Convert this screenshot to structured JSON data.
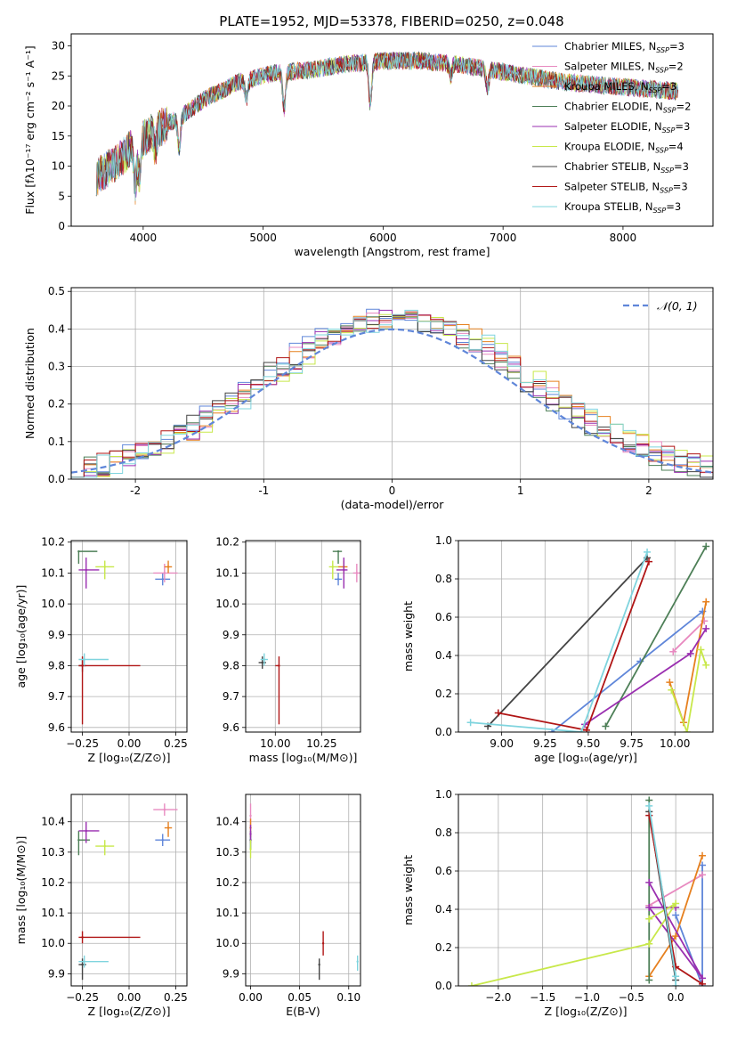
{
  "figure_title": "PLATE=1952, MJD=53378, FIBERID=0250, z=0.048",
  "colors": {
    "Chabrier MILES": "#5f86d9",
    "Salpeter MILES": "#e88ac0",
    "Kroupa MILES": "#e6801f",
    "Chabrier ELODIE": "#4d7f57",
    "Salpeter ELODIE": "#9a2fb0",
    "Kroupa ELODIE": "#c8e84a",
    "Chabrier STELIB": "#444444",
    "Salpeter STELIB": "#b01515",
    "Kroupa STELIB": "#7fd4de",
    "normal": "#5f86d9",
    "grid": "#b0b0b0"
  },
  "chart_data": [
    {
      "id": "spectrum",
      "type": "line",
      "xlabel": "wavelength [Angstrom, rest frame]",
      "ylabel": "Flux [fλ10⁻¹⁷ erg cm⁻² s⁻¹ A⁻¹]",
      "xlim": [
        3400,
        8750
      ],
      "ylim": [
        0,
        32
      ],
      "xticks": [
        4000,
        5000,
        6000,
        7000,
        8000
      ],
      "yticks": [
        0,
        5,
        10,
        15,
        20,
        25,
        30
      ],
      "grid": false,
      "legend_position": "top-right",
      "continuum": {
        "x": [
          3600,
          3800,
          3950,
          4100,
          4300,
          4500,
          4800,
          5100,
          5400,
          5700,
          6000,
          6300,
          6600,
          6900,
          7200,
          7500,
          7800,
          8100,
          8400,
          8700
        ],
        "y": [
          8,
          11,
          14,
          16,
          18,
          21,
          24,
          25.5,
          26,
          27,
          27.5,
          27.5,
          27,
          26,
          25,
          24,
          23.5,
          23,
          22.5,
          22
        ]
      },
      "features": [
        {
          "x": 3933,
          "depth": 7
        },
        {
          "x": 3968,
          "depth": 6
        },
        {
          "x": 4102,
          "depth": 3
        },
        {
          "x": 4300,
          "depth": 5
        },
        {
          "x": 4861,
          "depth": 3
        },
        {
          "x": 5175,
          "depth": 6
        },
        {
          "x": 5893,
          "depth": 7
        },
        {
          "x": 6563,
          "depth": 2
        },
        {
          "x": 6870,
          "depth": 3
        }
      ],
      "series": [
        {
          "name": "Chabrier MILES, N",
          "sub": "SSP",
          "suffix": "=3"
        },
        {
          "name": "Salpeter MILES, N",
          "sub": "SSP",
          "suffix": "=2"
        },
        {
          "name": "Kroupa MILES, N",
          "sub": "SSP",
          "suffix": "=3"
        },
        {
          "name": "Chabrier ELODIE, N",
          "sub": "SSP",
          "suffix": "=2"
        },
        {
          "name": "Salpeter ELODIE, N",
          "sub": "SSP",
          "suffix": "=3"
        },
        {
          "name": "Kroupa ELODIE, N",
          "sub": "SSP",
          "suffix": "=4"
        },
        {
          "name": "Chabrier STELIB, N",
          "sub": "SSP",
          "suffix": "=3"
        },
        {
          "name": "Salpeter STELIB, N",
          "sub": "SSP",
          "suffix": "=3"
        },
        {
          "name": "Kroupa STELIB, N",
          "sub": "SSP",
          "suffix": "=3"
        }
      ]
    },
    {
      "id": "residuals",
      "type": "line",
      "xlabel": "(data-model)/error",
      "ylabel": "Normed distribution",
      "xlim": [
        -2.5,
        2.5
      ],
      "ylim": [
        0,
        0.51
      ],
      "xticks": [
        -2,
        -1,
        0,
        1,
        2
      ],
      "yticks": [
        0.0,
        0.1,
        0.2,
        0.3,
        0.4,
        0.5
      ],
      "grid": true,
      "legend_position": "top-right",
      "legend": "𝒩(0, 1)",
      "normal_curve": {
        "mean": 0,
        "sigma": 1
      },
      "histogram_bins": {
        "start": -2.5,
        "width": 0.1
      }
    },
    {
      "id": "age_vs_Z",
      "type": "scatter",
      "xlabel": "Z [log₁₀(Z/Z⊙)]",
      "ylabel": "age  [log₁₀(age/yr)]",
      "xlim": [
        -0.31,
        0.31
      ],
      "ylim": [
        9.585,
        10.205
      ],
      "xticks": [
        -0.25,
        0.0,
        0.25
      ],
      "xticklabels": [
        "−0.25",
        "0.00",
        "0.25"
      ],
      "yticks": [
        9.6,
        9.7,
        9.8,
        9.9,
        10.0,
        10.1,
        10.2
      ],
      "grid": true,
      "points": [
        {
          "series": "Chabrier MILES",
          "x": 0.18,
          "y": 10.08,
          "xerr": [
            0.04,
            0.04
          ],
          "yerr": [
            0.02,
            0.02
          ]
        },
        {
          "series": "Salpeter MILES",
          "x": 0.19,
          "y": 10.1,
          "xerr": [
            0.06,
            0.07
          ],
          "yerr": [
            0.03,
            0.03
          ]
        },
        {
          "series": "Kroupa MILES",
          "x": 0.21,
          "y": 10.12,
          "xerr": [
            0.02,
            0.02
          ],
          "yerr": [
            0.02,
            0.02
          ]
        },
        {
          "series": "Chabrier ELODIE",
          "x": -0.27,
          "y": 10.17,
          "xerr": [
            0.0,
            0.1
          ],
          "yerr": [
            0.04,
            0.0
          ]
        },
        {
          "series": "Salpeter ELODIE",
          "x": -0.23,
          "y": 10.11,
          "xerr": [
            0.04,
            0.07
          ],
          "yerr": [
            0.06,
            0.04
          ]
        },
        {
          "series": "Kroupa ELODIE",
          "x": -0.13,
          "y": 10.12,
          "xerr": [
            0.05,
            0.05
          ],
          "yerr": [
            0.04,
            0.02
          ]
        },
        {
          "series": "Chabrier STELIB",
          "x": -0.25,
          "y": 9.8,
          "xerr": [
            0.02,
            0.02
          ],
          "yerr": [
            0.02,
            0.02
          ]
        },
        {
          "series": "Salpeter STELIB",
          "x": -0.25,
          "y": 9.8,
          "xerr": [
            0.02,
            0.31
          ],
          "yerr": [
            0.19,
            0.03
          ]
        },
        {
          "series": "Kroupa STELIB",
          "x": -0.24,
          "y": 9.82,
          "xerr": [
            0.03,
            0.13
          ],
          "yerr": [
            0.02,
            0.02
          ]
        }
      ]
    },
    {
      "id": "age_vs_mass",
      "type": "scatter",
      "xlabel": "mass [log₁₀(M/M⊙)]",
      "ylabel": "",
      "xlim": [
        9.84,
        10.46
      ],
      "ylim": [
        9.585,
        10.205
      ],
      "xticks": [
        10.0,
        10.25
      ],
      "xticklabels": [
        "10.00",
        "10.25"
      ],
      "yticks": [
        9.6,
        9.7,
        9.8,
        9.9,
        10.0,
        10.1,
        10.2
      ],
      "grid": true,
      "points": [
        {
          "series": "Chabrier MILES",
          "x": 10.34,
          "y": 10.08,
          "xerr": [
            0.02,
            0.02
          ],
          "yerr": [
            0.02,
            0.02
          ]
        },
        {
          "series": "Salpeter MILES",
          "x": 10.44,
          "y": 10.1,
          "xerr": [
            0.02,
            0.02
          ],
          "yerr": [
            0.03,
            0.03
          ]
        },
        {
          "series": "Kroupa MILES",
          "x": 10.37,
          "y": 10.12,
          "xerr": [
            0.03,
            0.02
          ],
          "yerr": [
            0.02,
            0.02
          ]
        },
        {
          "series": "Chabrier ELODIE",
          "x": 10.34,
          "y": 10.17,
          "xerr": [
            0.03,
            0.02
          ],
          "yerr": [
            0.04,
            0.0
          ]
        },
        {
          "series": "Salpeter ELODIE",
          "x": 10.37,
          "y": 10.11,
          "xerr": [
            0.04,
            0.02
          ],
          "yerr": [
            0.06,
            0.04
          ]
        },
        {
          "series": "Kroupa ELODIE",
          "x": 10.31,
          "y": 10.12,
          "xerr": [
            0.02,
            0.03
          ],
          "yerr": [
            0.04,
            0.02
          ]
        },
        {
          "series": "Chabrier STELIB",
          "x": 9.93,
          "y": 9.81,
          "xerr": [
            0.02,
            0.02
          ],
          "yerr": [
            0.02,
            0.02
          ]
        },
        {
          "series": "Salpeter STELIB",
          "x": 10.02,
          "y": 9.8,
          "xerr": [
            0.02,
            0.0
          ],
          "yerr": [
            0.19,
            0.03
          ]
        },
        {
          "series": "Kroupa STELIB",
          "x": 9.94,
          "y": 9.82,
          "xerr": [
            0.02,
            0.02
          ],
          "yerr": [
            0.02,
            0.02
          ]
        }
      ]
    },
    {
      "id": "weight_vs_age",
      "type": "line",
      "xlabel": "age  [log₁₀(age/yr)]",
      "ylabel": "mass weight",
      "xlim": [
        8.75,
        10.22
      ],
      "ylim": [
        0,
        1.0
      ],
      "xticks": [
        9.0,
        9.25,
        9.5,
        9.75,
        10.0
      ],
      "xticklabels": [
        "9.00",
        "9.25",
        "9.50",
        "9.75",
        "10.00"
      ],
      "yticks": [
        0.0,
        0.2,
        0.4,
        0.6,
        0.8,
        1.0
      ],
      "grid": true,
      "series": [
        {
          "series": "Chabrier MILES",
          "x": [
            9.29,
            9.8,
            10.16
          ],
          "y": [
            0.0,
            0.37,
            0.63
          ]
        },
        {
          "series": "Salpeter MILES",
          "x": [
            9.99,
            10.17
          ],
          "y": [
            0.42,
            0.58
          ]
        },
        {
          "series": "Kroupa MILES",
          "x": [
            9.97,
            10.05,
            10.18
          ],
          "y": [
            0.26,
            0.05,
            0.68
          ]
        },
        {
          "series": "Chabrier ELODIE",
          "x": [
            9.6,
            10.18
          ],
          "y": [
            0.03,
            0.97
          ]
        },
        {
          "series": "Salpeter ELODIE",
          "x": [
            9.48,
            10.09,
            10.18
          ],
          "y": [
            0.04,
            0.41,
            0.54
          ]
        },
        {
          "series": "Kroupa ELODIE",
          "x": [
            9.98,
            10.07,
            10.15,
            10.18
          ],
          "y": [
            0.22,
            0.0,
            0.43,
            0.35
          ]
        },
        {
          "series": "Chabrier STELIB",
          "x": [
            8.92,
            9.84
          ],
          "y": [
            0.03,
            0.91
          ]
        },
        {
          "series": "Salpeter STELIB",
          "x": [
            8.98,
            9.49,
            9.85
          ],
          "y": [
            0.1,
            0.01,
            0.89
          ]
        },
        {
          "series": "Kroupa STELIB",
          "x": [
            8.82,
            9.46,
            9.84
          ],
          "y": [
            0.05,
            0.0,
            0.94
          ]
        }
      ]
    },
    {
      "id": "mass_vs_Z",
      "type": "scatter",
      "xlabel": "Z [log₁₀(Z/Z⊙)]",
      "ylabel": "mass [log₁₀(M/M⊙)]",
      "xlim": [
        -0.31,
        0.31
      ],
      "ylim": [
        9.86,
        10.49
      ],
      "xticks": [
        -0.25,
        0.0,
        0.25
      ],
      "xticklabels": [
        "−0.25",
        "0.00",
        "0.25"
      ],
      "yticks": [
        9.9,
        10.0,
        10.1,
        10.2,
        10.3,
        10.4
      ],
      "grid": true,
      "points": [
        {
          "series": "Chabrier MILES",
          "x": 0.18,
          "y": 10.34,
          "xerr": [
            0.04,
            0.04
          ],
          "yerr": [
            0.02,
            0.02
          ]
        },
        {
          "series": "Salpeter MILES",
          "x": 0.19,
          "y": 10.44,
          "xerr": [
            0.06,
            0.07
          ],
          "yerr": [
            0.02,
            0.02
          ]
        },
        {
          "series": "Kroupa MILES",
          "x": 0.21,
          "y": 10.38,
          "xerr": [
            0.02,
            0.02
          ],
          "yerr": [
            0.03,
            0.02
          ]
        },
        {
          "series": "Chabrier ELODIE",
          "x": -0.27,
          "y": 10.34,
          "xerr": [
            0.0,
            0.06
          ],
          "yerr": [
            0.05,
            0.03
          ]
        },
        {
          "series": "Salpeter ELODIE",
          "x": -0.23,
          "y": 10.37,
          "xerr": [
            0.04,
            0.07
          ],
          "yerr": [
            0.04,
            0.03
          ]
        },
        {
          "series": "Kroupa ELODIE",
          "x": -0.13,
          "y": 10.32,
          "xerr": [
            0.05,
            0.05
          ],
          "yerr": [
            0.03,
            0.02
          ]
        },
        {
          "series": "Chabrier STELIB",
          "x": -0.25,
          "y": 9.93,
          "xerr": [
            0.02,
            0.02
          ],
          "yerr": [
            0.05,
            0.02
          ]
        },
        {
          "series": "Salpeter STELIB",
          "x": -0.25,
          "y": 10.02,
          "xerr": [
            0.02,
            0.31
          ],
          "yerr": [
            0.02,
            0.02
          ]
        },
        {
          "series": "Kroupa STELIB",
          "x": -0.24,
          "y": 9.94,
          "xerr": [
            0.03,
            0.13
          ],
          "yerr": [
            0.02,
            0.02
          ]
        }
      ]
    },
    {
      "id": "mass_vs_EBV",
      "type": "scatter",
      "xlabel": "E(B-V)",
      "ylabel": "",
      "xlim": [
        -0.005,
        0.112
      ],
      "ylim": [
        9.86,
        10.49
      ],
      "xticks": [
        0.0,
        0.05,
        0.1
      ],
      "xticklabels": [
        "0.00",
        "0.05",
        "0.10"
      ],
      "yticks": [
        9.9,
        10.0,
        10.1,
        10.2,
        10.3,
        10.4
      ],
      "grid": true,
      "points": [
        {
          "series": "Chabrier MILES",
          "x": 0.0,
          "y": 10.34,
          "xerr": [
            0,
            0
          ],
          "yerr": [
            0.03,
            0.03
          ]
        },
        {
          "series": "Salpeter MILES",
          "x": 0.0,
          "y": 10.42,
          "xerr": [
            0,
            0
          ],
          "yerr": [
            0.04,
            0.04
          ]
        },
        {
          "series": "Kroupa MILES",
          "x": 0.0,
          "y": 10.38,
          "xerr": [
            0,
            0
          ],
          "yerr": [
            0.03,
            0.03
          ]
        },
        {
          "series": "Chabrier ELODIE",
          "x": 0.0,
          "y": 10.34,
          "xerr": [
            0,
            0
          ],
          "yerr": [
            0.03,
            0.03
          ]
        },
        {
          "series": "Salpeter ELODIE",
          "x": 0.0,
          "y": 10.36,
          "xerr": [
            0,
            0
          ],
          "yerr": [
            0.03,
            0.03
          ]
        },
        {
          "series": "Kroupa ELODIE",
          "x": 0.0,
          "y": 10.31,
          "xerr": [
            0,
            0
          ],
          "yerr": [
            0.03,
            0.03
          ]
        },
        {
          "series": "Chabrier STELIB",
          "x": 0.07,
          "y": 9.93,
          "xerr": [
            0,
            0
          ],
          "yerr": [
            0.05,
            0.02
          ]
        },
        {
          "series": "Salpeter STELIB",
          "x": 0.074,
          "y": 10.0,
          "xerr": [
            0,
            0
          ],
          "yerr": [
            0.04,
            0.04
          ]
        },
        {
          "series": "Kroupa STELIB",
          "x": 0.109,
          "y": 9.94,
          "xerr": [
            0,
            0
          ],
          "yerr": [
            0.03,
            0.02
          ]
        }
      ]
    },
    {
      "id": "weight_vs_Z",
      "type": "line",
      "xlabel": "Z [log₁₀(Z/Z⊙)]",
      "ylabel": "mass weight",
      "xlim": [
        -2.45,
        0.42
      ],
      "ylim": [
        0,
        1.0
      ],
      "xticks": [
        -2.0,
        -1.5,
        -1.0,
        -0.5,
        0.0
      ],
      "xticklabels": [
        "−2.0",
        "−1.5",
        "−1.0",
        "−0.5",
        "0.0"
      ],
      "yticks": [
        0.0,
        0.2,
        0.4,
        0.6,
        0.8,
        1.0
      ],
      "grid": true,
      "series": [
        {
          "series": "Chabrier MILES",
          "x": [
            0.0,
            0.3,
            0.3
          ],
          "y": [
            0.37,
            0.0,
            0.63
          ]
        },
        {
          "series": "Salpeter MILES",
          "x": [
            -0.3,
            0.3
          ],
          "y": [
            0.42,
            0.58
          ]
        },
        {
          "series": "Kroupa MILES",
          "x": [
            -0.3,
            0.0,
            0.3
          ],
          "y": [
            0.05,
            0.26,
            0.68
          ]
        },
        {
          "series": "Chabrier ELODIE",
          "x": [
            -0.3,
            -0.3
          ],
          "y": [
            0.03,
            0.97
          ]
        },
        {
          "series": "Salpeter ELODIE",
          "x": [
            -0.3,
            0.3,
            -0.3,
            0.0
          ],
          "y": [
            0.54,
            0.04,
            0.41,
            0.41
          ]
        },
        {
          "series": "Kroupa ELODIE",
          "x": [
            -2.3,
            -0.3,
            0.0,
            -0.3
          ],
          "y": [
            0.0,
            0.22,
            0.43,
            0.35
          ]
        },
        {
          "series": "Chabrier STELIB",
          "x": [
            0.0,
            -0.3
          ],
          "y": [
            0.03,
            0.91
          ]
        },
        {
          "series": "Salpeter STELIB",
          "x": [
            0.3,
            0.0,
            -0.3
          ],
          "y": [
            0.01,
            0.1,
            0.89
          ]
        },
        {
          "series": "Kroupa STELIB",
          "x": [
            0.0,
            0.0,
            -0.3
          ],
          "y": [
            0.0,
            0.05,
            0.94
          ]
        }
      ]
    }
  ]
}
